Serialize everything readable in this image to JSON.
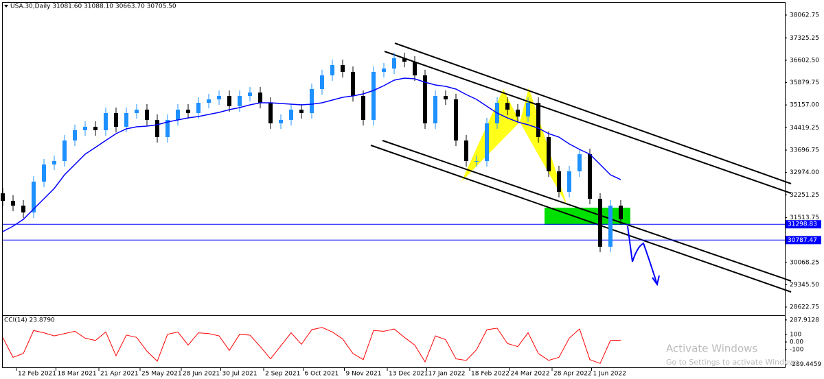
{
  "chart_data": [
    {
      "type": "candlestick",
      "title": "USA.30,Daily 31081.60 31088.10 30663.70 30705.50",
      "x": [
        0,
        6,
        12,
        18,
        24,
        30,
        36,
        42,
        48,
        54,
        60,
        66,
        72,
        78,
        84,
        90,
        96,
        102,
        108,
        114,
        120,
        126,
        132,
        138,
        144,
        150,
        156,
        162,
        168,
        174,
        180,
        186,
        192,
        198,
        204,
        210,
        216,
        222,
        228,
        234,
        240,
        246,
        252,
        258,
        264,
        270,
        276,
        282,
        288,
        294,
        300,
        306,
        312,
        318,
        324,
        330,
        336,
        342,
        348,
        354,
        360
      ],
      "xlim": [
        0,
        455.6
      ],
      "xticks": [
        {
          "value": 8,
          "label": "12 Feb 2021"
        },
        {
          "value": 31,
          "label": "18 Mar 2021"
        },
        {
          "value": 56,
          "label": "21 Apr 2021"
        },
        {
          "value": 80,
          "label": "25 May 2021"
        },
        {
          "value": 104,
          "label": "28 Jun 2021"
        },
        {
          "value": 127,
          "label": "30 Jul 2021"
        },
        {
          "value": 152,
          "label": "2 Sep 2021"
        },
        {
          "value": 175,
          "label": "6 Oct 2021"
        },
        {
          "value": 199,
          "label": "9 Nov 2021"
        },
        {
          "value": 224,
          "label": "13 Dec 2021"
        },
        {
          "value": 247,
          "label": "17 Jan 2022"
        },
        {
          "value": 272,
          "label": "18 Feb 2022"
        },
        {
          "value": 295,
          "label": "24 Mar 2022"
        },
        {
          "value": 320,
          "label": "28 Apr 2022"
        },
        {
          "value": 343,
          "label": "1 Jun 2022"
        }
      ],
      "open": [
        32300,
        32057,
        31902,
        31681,
        32678,
        33232,
        33343,
        34008,
        34340,
        34451,
        34340,
        34894,
        34451,
        34894,
        35005,
        34673,
        34119,
        34673,
        35005,
        34894,
        35226,
        35337,
        35448,
        35116,
        35448,
        35559,
        35226,
        34562,
        34673,
        35005,
        34894,
        35670,
        36113,
        36445,
        36224,
        35448,
        34673,
        36224,
        36334,
        36667,
        36556,
        36113,
        34562,
        35448,
        35337,
        34008,
        33343,
        33343,
        34562,
        35226,
        35005,
        34783,
        35226,
        34119,
        33011,
        32346,
        33011,
        33565,
        32124,
        30573,
        31902
      ],
      "high": [
        32480,
        32237,
        32082,
        32858,
        33412,
        33523,
        34188,
        34520,
        34631,
        34631,
        35074,
        35074,
        35074,
        35185,
        35185,
        34853,
        34853,
        35185,
        35185,
        35406,
        35517,
        35628,
        35628,
        35628,
        35739,
        35739,
        35406,
        34853,
        35185,
        35185,
        35850,
        36293,
        36625,
        36625,
        36404,
        35628,
        36404,
        36514,
        36847,
        36847,
        36736,
        36293,
        35628,
        35628,
        35517,
        34188,
        33523,
        34742,
        35406,
        35406,
        35185,
        35406,
        35406,
        34299,
        33191,
        33191,
        33745,
        33745,
        32304,
        32082,
        32082
      ],
      "low": [
        31877,
        31722,
        31501,
        31501,
        32498,
        33052,
        33163,
        33828,
        34160,
        34160,
        34160,
        34271,
        34271,
        34714,
        34493,
        33939,
        33939,
        34493,
        34714,
        34714,
        35046,
        35157,
        34936,
        34936,
        35268,
        35046,
        34382,
        34382,
        34493,
        34714,
        34714,
        35490,
        35933,
        36044,
        35268,
        34493,
        34493,
        36044,
        36154,
        36376,
        35933,
        34382,
        34382,
        35157,
        33828,
        33163,
        33163,
        33163,
        34382,
        34825,
        34603,
        34603,
        33939,
        32831,
        32166,
        32166,
        32831,
        31944,
        30393,
        30393,
        31279
      ],
      "close": [
        32057,
        31902,
        31681,
        32678,
        33232,
        33343,
        34008,
        34340,
        34451,
        34340,
        34894,
        34451,
        34894,
        35005,
        34673,
        34119,
        34673,
        35005,
        34894,
        35226,
        35337,
        35448,
        35116,
        35448,
        35559,
        35226,
        34562,
        34673,
        35005,
        34894,
        35670,
        36113,
        36445,
        36224,
        35448,
        34673,
        36224,
        36334,
        36667,
        36556,
        36113,
        34562,
        35448,
        35337,
        34008,
        33343,
        33343,
        34562,
        35226,
        35005,
        34783,
        35226,
        34119,
        33011,
        32346,
        33011,
        33565,
        32124,
        30573,
        31902,
        31459
      ],
      "up_color": "#1e90ff",
      "down_color": "#000000",
      "ma": {
        "color": "#0000ff",
        "values": [
          31060,
          31237,
          31459,
          31791,
          32124,
          32456,
          32899,
          33232,
          33564,
          33786,
          34007,
          34229,
          34384,
          34450,
          34473,
          34517,
          34606,
          34672,
          34738,
          34783,
          34849,
          34916,
          35004,
          35071,
          35160,
          35226,
          35226,
          35204,
          35182,
          35160,
          35182,
          35226,
          35315,
          35403,
          35448,
          35514,
          35625,
          35780,
          35957,
          36024,
          36002,
          35891,
          35802,
          35758,
          35669,
          35492,
          35337,
          35115,
          34894,
          34738,
          34606,
          34517,
          34406,
          34229,
          34118,
          33896,
          33719,
          33564,
          33232,
          32899,
          32744
        ]
      },
      "hlines": [
        31298.83,
        30787.47
      ],
      "hline_color": "#0000ff",
      "ylim": [
        28357,
        38461
      ],
      "yticks": [
        {
          "value": 38062.75,
          "label": "38062.75"
        },
        {
          "value": 37325.25,
          "label": "37325.25"
        },
        {
          "value": 36602.5,
          "label": "36602.50"
        },
        {
          "value": 35879.75,
          "label": "35879.75"
        },
        {
          "value": 35157,
          "label": "35157.00"
        },
        {
          "value": 34419.25,
          "label": "34419.25"
        },
        {
          "value": 33696.75,
          "label": "33696.75"
        },
        {
          "value": 32974,
          "label": "32974.00"
        },
        {
          "value": 32251.25,
          "label": "32251.25"
        },
        {
          "value": 31513.75,
          "label": "31513.75"
        },
        {
          "value": 30068.25,
          "label": "30068.25"
        },
        {
          "value": 29345.5,
          "label": "29345.50"
        },
        {
          "value": 28622.75,
          "label": "28622.75"
        }
      ]
    },
    {
      "type": "line",
      "title": "CCI(14) 23.8790",
      "color": "#ff0000",
      "values": [
        60,
        -200,
        -150,
        150,
        120,
        80,
        110,
        140,
        50,
        20,
        130,
        -180,
        90,
        60,
        -120,
        -250,
        100,
        130,
        -40,
        120,
        110,
        80,
        -110,
        100,
        90,
        -60,
        -220,
        -50,
        120,
        -30,
        160,
        190,
        130,
        40,
        -150,
        -230,
        150,
        140,
        170,
        60,
        -40,
        -260,
        80,
        30,
        -220,
        -240,
        -100,
        160,
        180,
        -20,
        -60,
        120,
        -150,
        -240,
        -200,
        50,
        170,
        -230,
        -280,
        20,
        23.879
      ],
      "ylim": [
        -340,
        340
      ],
      "yticks": [
        287.9128,
        100,
        {
          "value": 0,
          "label": "0.00"
        },
        -100,
        -289.4459
      ]
    }
  ],
  "watermark": {
    "title": "Activate Windows",
    "subtitle": "Go to Settings to activate Windows."
  }
}
